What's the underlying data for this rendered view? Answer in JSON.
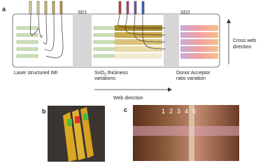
{
  "panel_a": {
    "label": "a",
    "sd1": "SD1",
    "sd2": "SD2",
    "cross_web": [
      "Cross web",
      "direction"
    ],
    "imi": "Laser structured IMI",
    "sno2": {
      "main": "SnO",
      "sub": "2",
      "rest": " thickness",
      "line2": "variations"
    },
    "donor": [
      "Donor:Acceptor",
      "ratio variation"
    ],
    "web_direction": "Web direction"
  },
  "panel_b": {
    "label": "b"
  },
  "panel_c": {
    "label": "c",
    "numbers": [
      "1",
      "2",
      "3",
      "4",
      "5"
    ]
  }
}
